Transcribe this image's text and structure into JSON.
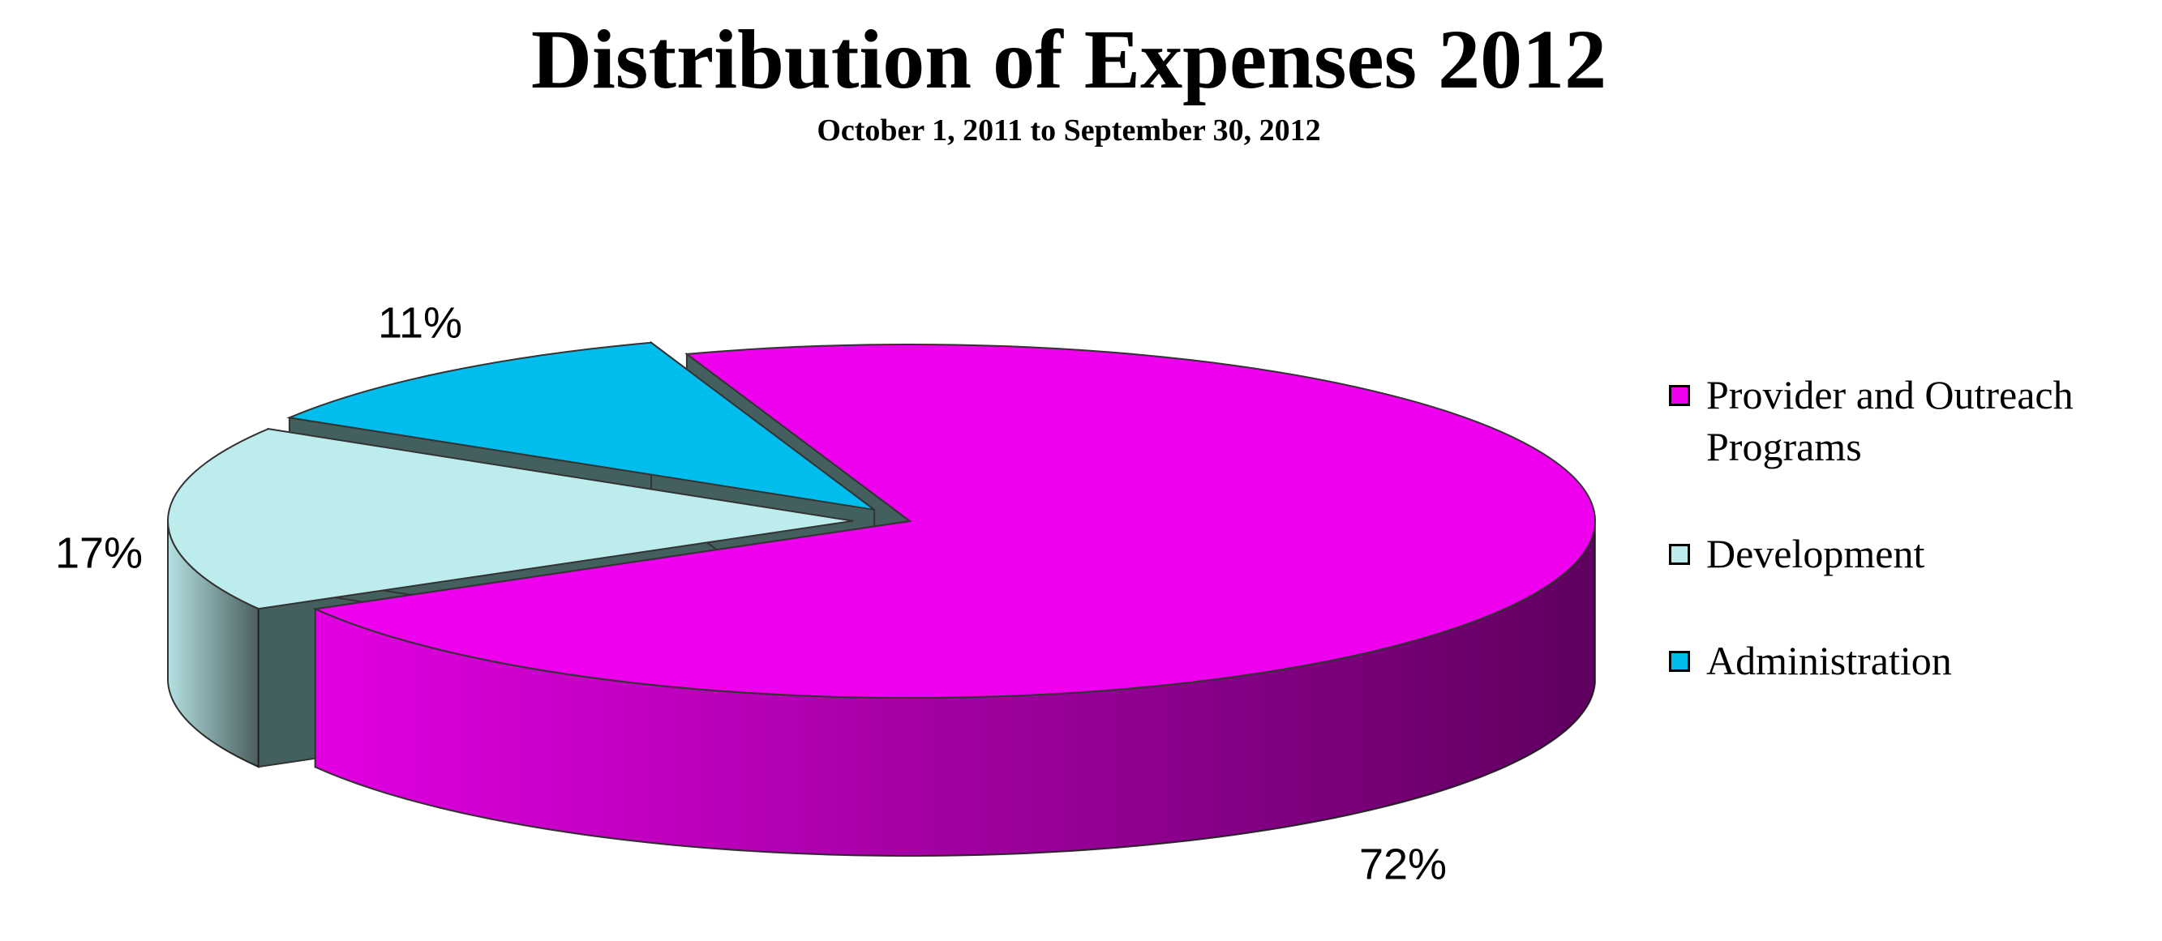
{
  "chart_data": {
    "type": "pie",
    "title": "Distribution of Expenses 2012",
    "subtitle": "October 1, 2011 to September 30, 2012",
    "categories": [
      "Provider and Outreach Programs",
      "Development",
      "Administration"
    ],
    "values": [
      72,
      17,
      11
    ],
    "value_labels": [
      "72%",
      "17%",
      "11%"
    ],
    "colors": [
      "#ee00ee",
      "#bdeced",
      "#00bdee"
    ]
  }
}
